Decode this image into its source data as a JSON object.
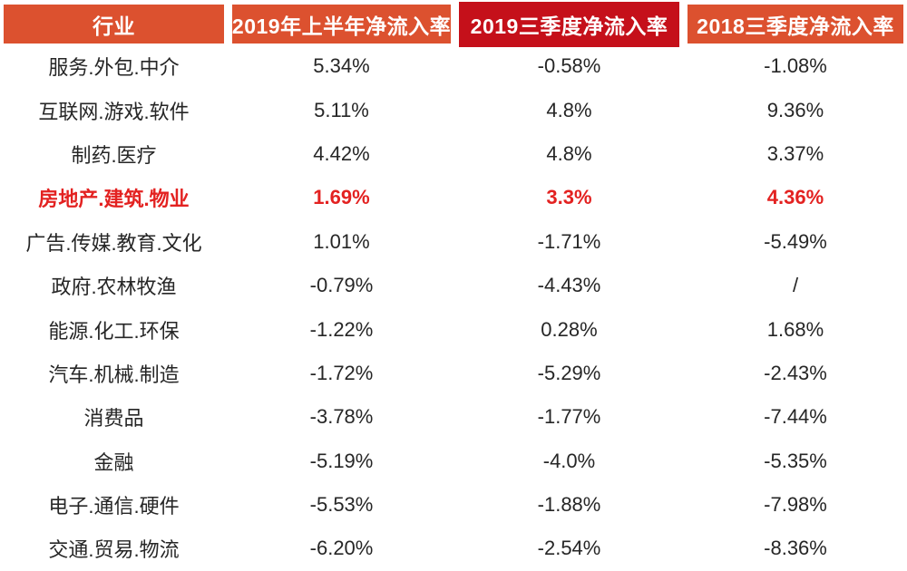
{
  "colors": {
    "header_bg": "#DC512F",
    "header_bg_emphasis": "#C5101A",
    "header_text": "#FFFFFF",
    "body_text": "#262626",
    "highlight_text": "#E32221"
  },
  "table": {
    "columns": [
      {
        "id": "industry",
        "label": "行业",
        "emphasis": false
      },
      {
        "id": "h1_2019",
        "label": "2019年上半年净流入率",
        "emphasis": false
      },
      {
        "id": "q3_2019",
        "label": "2019三季度净流入率",
        "emphasis": true
      },
      {
        "id": "q3_2018",
        "label": "2018三季度净流入率",
        "emphasis": false
      }
    ],
    "rows": [
      {
        "industry": "服务.外包.中介",
        "h1_2019": "5.34%",
        "q3_2019": "-0.58%",
        "q3_2018": "-1.08%",
        "highlight": false
      },
      {
        "industry": "互联网.游戏.软件",
        "h1_2019": "5.11%",
        "q3_2019": "4.8%",
        "q3_2018": "9.36%",
        "highlight": false
      },
      {
        "industry": "制药.医疗",
        "h1_2019": "4.42%",
        "q3_2019": "4.8%",
        "q3_2018": "3.37%",
        "highlight": false
      },
      {
        "industry": "房地产.建筑.物业",
        "h1_2019": "1.69%",
        "q3_2019": "3.3%",
        "q3_2018": "4.36%",
        "highlight": true
      },
      {
        "industry": "广告.传媒.教育.文化",
        "h1_2019": "1.01%",
        "q3_2019": "-1.71%",
        "q3_2018": "-5.49%",
        "highlight": false
      },
      {
        "industry": "政府.农林牧渔",
        "h1_2019": "-0.79%",
        "q3_2019": "-4.43%",
        "q3_2018": "/",
        "highlight": false
      },
      {
        "industry": "能源.化工.环保",
        "h1_2019": "-1.22%",
        "q3_2019": "0.28%",
        "q3_2018": "1.68%",
        "highlight": false
      },
      {
        "industry": "汽车.机械.制造",
        "h1_2019": "-1.72%",
        "q3_2019": "-5.29%",
        "q3_2018": "-2.43%",
        "highlight": false
      },
      {
        "industry": "消费品",
        "h1_2019": "-3.78%",
        "q3_2019": "-1.77%",
        "q3_2018": "-7.44%",
        "highlight": false
      },
      {
        "industry": "金融",
        "h1_2019": "-5.19%",
        "q3_2019": "-4.0%",
        "q3_2018": "-5.35%",
        "highlight": false
      },
      {
        "industry": "电子.通信.硬件",
        "h1_2019": "-5.53%",
        "q3_2019": "-1.88%",
        "q3_2018": "-7.98%",
        "highlight": false
      },
      {
        "industry": "交通.贸易.物流",
        "h1_2019": "-6.20%",
        "q3_2019": "-2.54%",
        "q3_2018": "-8.36%",
        "highlight": false
      }
    ]
  },
  "chart_data": {
    "type": "table",
    "columns": [
      "行业",
      "2019年上半年净流入率",
      "2019三季度净流入率",
      "2018三季度净流入率"
    ],
    "rows": [
      [
        "服务.外包.中介",
        "5.34%",
        "-0.58%",
        "-1.08%"
      ],
      [
        "互联网.游戏.软件",
        "5.11%",
        "4.8%",
        "9.36%"
      ],
      [
        "制药.医疗",
        "4.42%",
        "4.8%",
        "3.37%"
      ],
      [
        "房地产.建筑.物业",
        "1.69%",
        "3.3%",
        "4.36%"
      ],
      [
        "广告.传媒.教育.文化",
        "1.01%",
        "-1.71%",
        "-5.49%"
      ],
      [
        "政府.农林牧渔",
        "-0.79%",
        "-4.43%",
        "/"
      ],
      [
        "能源.化工.环保",
        "-1.22%",
        "0.28%",
        "1.68%"
      ],
      [
        "汽车.机械.制造",
        "-1.72%",
        "-5.29%",
        "-2.43%"
      ],
      [
        "消费品",
        "-3.78%",
        "-1.77%",
        "-7.44%"
      ],
      [
        "金融",
        "-5.19%",
        "-4.0%",
        "-5.35%"
      ],
      [
        "电子.通信.硬件",
        "-5.53%",
        "-1.88%",
        "-7.98%"
      ],
      [
        "交通.贸易.物流",
        "-6.20%",
        "-2.54%",
        "-8.36%"
      ]
    ],
    "notes": "Row 房地产.建筑.物业 highlighted in bold red; header column 2019三季度净流入率 has darker red background"
  }
}
